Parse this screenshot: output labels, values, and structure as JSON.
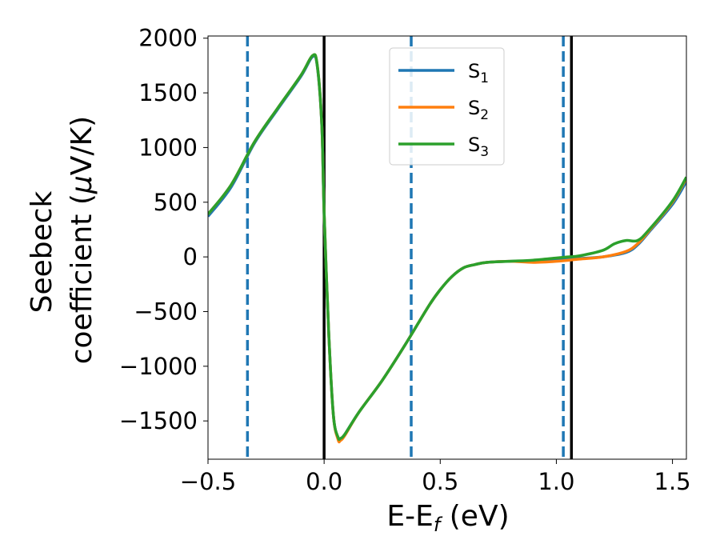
{
  "chart_data": {
    "type": "line",
    "xlabel": {
      "main": "E-E",
      "sub": "f",
      "unit": " (eV)"
    },
    "ylabel": {
      "line1": "Seebeck",
      "line2": "coefficient  (",
      "mu": "μ",
      "unit": "V/K)"
    },
    "xlim": [
      -0.5,
      1.56
    ],
    "ylim": [
      -1850,
      2020
    ],
    "xticks": [
      -0.5,
      0.0,
      0.5,
      1.0,
      1.5
    ],
    "xtick_labels": [
      "−0.5",
      "0.0",
      "0.5",
      "1.0",
      "1.5"
    ],
    "yticks": [
      -1500,
      -1000,
      -500,
      0,
      500,
      1000,
      1500,
      2000
    ],
    "ytick_labels": [
      "−1500",
      "−1000",
      "−500",
      "0",
      "500",
      "1000",
      "1500",
      "2000"
    ],
    "grid": false,
    "legend_position": "top-center",
    "vlines": [
      {
        "x": -0.33,
        "style": "dashed",
        "color": "#1f77b4"
      },
      {
        "x": 0.0,
        "style": "solid",
        "color": "#000000"
      },
      {
        "x": 0.375,
        "style": "dashed",
        "color": "#1f77b4"
      },
      {
        "x": 1.03,
        "style": "dashed",
        "color": "#1f77b4"
      },
      {
        "x": 1.065,
        "style": "solid",
        "color": "#000000"
      }
    ],
    "series": [
      {
        "name": "S",
        "sub": "1",
        "color": "#1f77b4",
        "x": [
          -0.5,
          -0.4,
          -0.3,
          -0.2,
          -0.1,
          -0.05,
          -0.03,
          -0.01,
          0.0,
          0.02,
          0.04,
          0.06,
          0.07,
          0.09,
          0.15,
          0.25,
          0.35,
          0.45,
          0.5,
          0.55,
          0.6,
          0.65,
          0.7,
          0.8,
          0.9,
          1.0,
          1.1,
          1.2,
          1.3,
          1.35,
          1.4,
          1.5,
          1.56
        ],
        "y": [
          370,
          640,
          1040,
          1350,
          1650,
          1830,
          1750,
          1200,
          400,
          -700,
          -1450,
          -1660,
          -1670,
          -1620,
          -1420,
          -1130,
          -800,
          -450,
          -300,
          -180,
          -100,
          -70,
          -50,
          -40,
          -40,
          -30,
          -15,
          0,
          40,
          110,
          230,
          480,
          690
        ]
      },
      {
        "name": "S",
        "sub": "2",
        "color": "#ff7f0e",
        "x": [
          -0.5,
          -0.4,
          -0.3,
          -0.2,
          -0.1,
          -0.05,
          -0.03,
          -0.01,
          0.0,
          0.02,
          0.04,
          0.06,
          0.07,
          0.09,
          0.15,
          0.25,
          0.35,
          0.45,
          0.5,
          0.55,
          0.6,
          0.65,
          0.7,
          0.8,
          0.9,
          1.0,
          1.1,
          1.2,
          1.3,
          1.35,
          1.4,
          1.5,
          1.56
        ],
        "y": [
          390,
          660,
          1050,
          1360,
          1660,
          1840,
          1760,
          1210,
          410,
          -700,
          -1450,
          -1670,
          -1680,
          -1630,
          -1420,
          -1130,
          -800,
          -450,
          -300,
          -180,
          -100,
          -70,
          -50,
          -40,
          -50,
          -40,
          -20,
          0,
          50,
          120,
          240,
          500,
          720
        ]
      },
      {
        "name": "S",
        "sub": "3",
        "color": "#2ca02c",
        "x": [
          -0.5,
          -0.4,
          -0.3,
          -0.2,
          -0.1,
          -0.05,
          -0.03,
          -0.01,
          0.0,
          0.02,
          0.04,
          0.06,
          0.07,
          0.09,
          0.15,
          0.25,
          0.35,
          0.45,
          0.5,
          0.55,
          0.6,
          0.65,
          0.7,
          0.8,
          0.9,
          1.0,
          1.05,
          1.1,
          1.2,
          1.25,
          1.3,
          1.35,
          1.4,
          1.5,
          1.56
        ],
        "y": [
          390,
          660,
          1050,
          1360,
          1660,
          1840,
          1760,
          1210,
          410,
          -700,
          -1450,
          -1650,
          -1660,
          -1620,
          -1420,
          -1130,
          -800,
          -450,
          -300,
          -180,
          -100,
          -70,
          -50,
          -40,
          -30,
          -10,
          0,
          10,
          60,
          120,
          150,
          150,
          250,
          510,
          730
        ]
      }
    ]
  }
}
